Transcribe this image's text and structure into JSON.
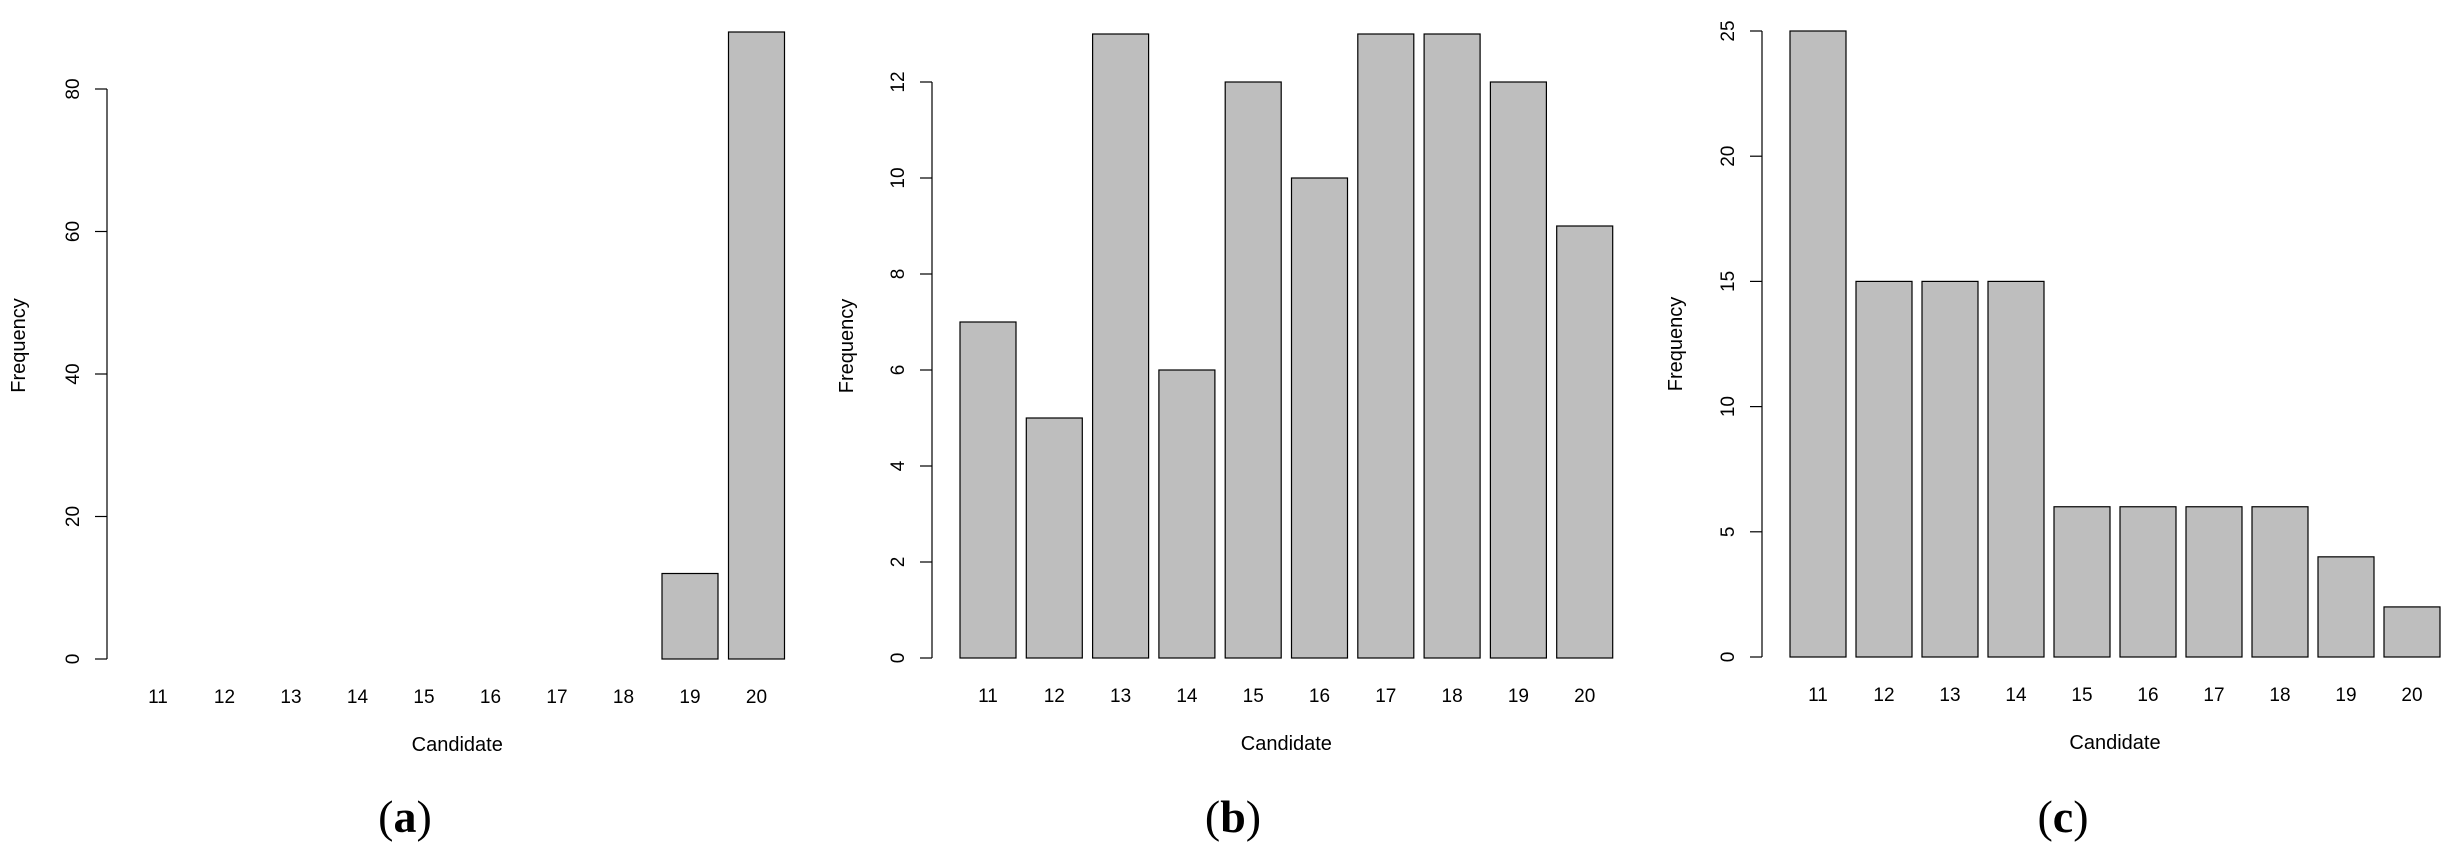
{
  "chart_data": [
    {
      "type": "bar",
      "panel": "a",
      "xlabel": "Candidate",
      "ylabel": "Frequency",
      "categories": [
        "11",
        "12",
        "13",
        "14",
        "15",
        "16",
        "17",
        "18",
        "19",
        "20"
      ],
      "values": [
        0,
        0,
        0,
        0,
        0,
        0,
        0,
        0,
        12,
        88
      ],
      "yticks": [
        0,
        20,
        40,
        60,
        80
      ],
      "ylim": [
        0,
        88
      ],
      "grid": false,
      "bar_color": "#bebebe"
    },
    {
      "type": "bar",
      "panel": "b",
      "xlabel": "Candidate",
      "ylabel": "Frequency",
      "categories": [
        "11",
        "12",
        "13",
        "14",
        "15",
        "16",
        "17",
        "18",
        "19",
        "20"
      ],
      "values": [
        7,
        5,
        13,
        6,
        12,
        10,
        13,
        13,
        12,
        9
      ],
      "yticks": [
        0,
        2,
        4,
        6,
        8,
        10,
        12
      ],
      "ylim": [
        0,
        13
      ],
      "grid": false,
      "bar_color": "#bebebe"
    },
    {
      "type": "bar",
      "panel": "c",
      "xlabel": "Candidate",
      "ylabel": "Frequency",
      "categories": [
        "11",
        "12",
        "13",
        "14",
        "15",
        "16",
        "17",
        "18",
        "19",
        "20"
      ],
      "values": [
        25,
        15,
        15,
        15,
        6,
        6,
        6,
        6,
        4,
        2
      ],
      "yticks": [
        0,
        5,
        10,
        15,
        20,
        25
      ],
      "ylim": [
        0,
        25
      ],
      "grid": false,
      "bar_color": "#bebebe"
    }
  ],
  "panel_labels": [
    "a",
    "b",
    "c"
  ]
}
